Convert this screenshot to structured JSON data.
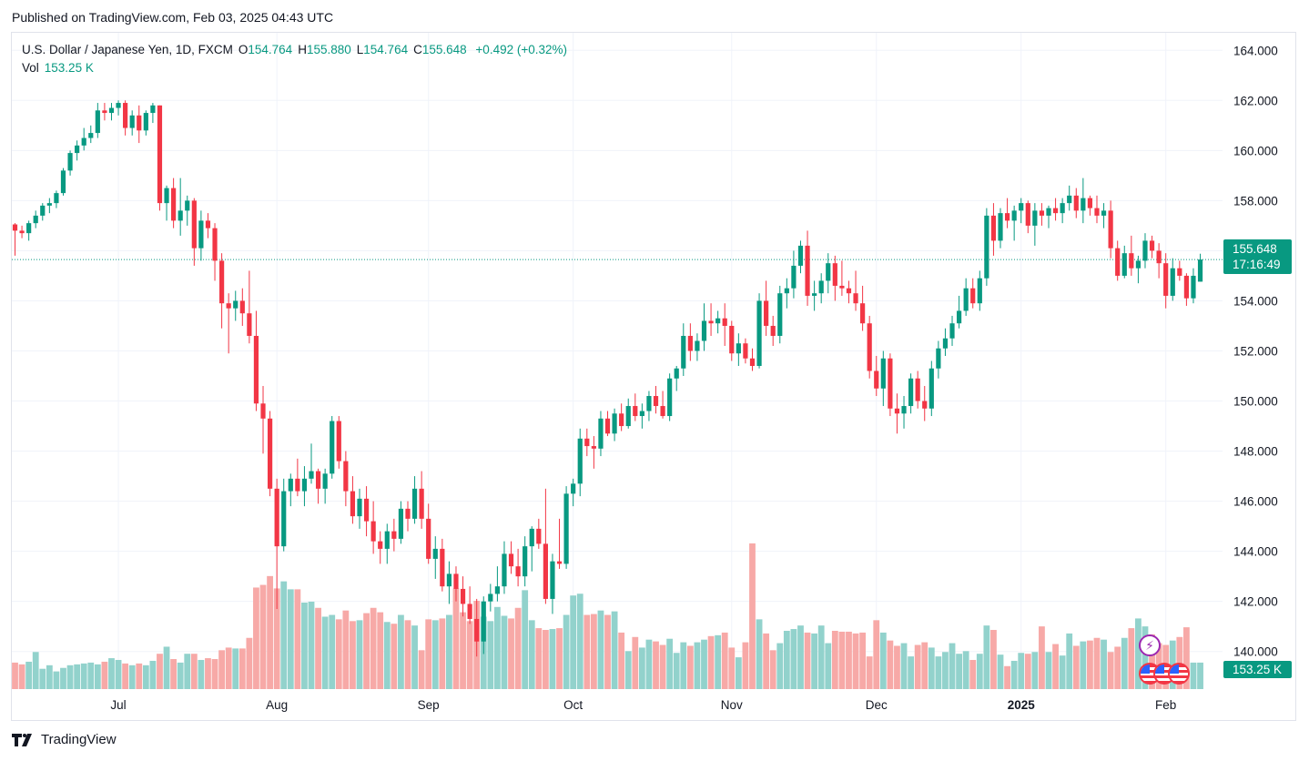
{
  "published": "Published on TradingView.com, Feb 03, 2025 04:43 UTC",
  "legend": {
    "symbol": "U.S. Dollar / Japanese Yen, 1D, FXCM",
    "o_label": "O",
    "o_value": "154.764",
    "h_label": "H",
    "h_value": "155.880",
    "l_label": "L",
    "l_value": "154.764",
    "c_label": "C",
    "c_value": "155.648",
    "change": "+0.492 (+0.32%)",
    "vol_label": "Vol",
    "vol_value": "153.25 K"
  },
  "price_badge": {
    "price": "155.648",
    "countdown": "17:16:49"
  },
  "volume_badge": "153.25 K",
  "footer": {
    "brand": "TradingView"
  },
  "colors": {
    "up": "#089981",
    "down": "#f23645",
    "up_volume": "#92d2cc",
    "down_volume": "#f7a9a7",
    "grid": "#f0f3fa"
  },
  "chart_data": {
    "type": "candlestick",
    "title": "U.S. Dollar / Japanese Yen, 1D, FXCM",
    "ylim": [
      138.5,
      164.7
    ],
    "y_ticks": [
      "140.000",
      "142.000",
      "144.000",
      "146.000",
      "148.000",
      "150.000",
      "152.000",
      "154.000",
      "156.000",
      "158.000",
      "160.000",
      "162.000",
      "164.000"
    ],
    "x_ticks": [
      {
        "label": "Jul",
        "index": 15,
        "bold": false
      },
      {
        "label": "Aug",
        "index": 38,
        "bold": false
      },
      {
        "label": "Sep",
        "index": 60,
        "bold": false
      },
      {
        "label": "Oct",
        "index": 81,
        "bold": false
      },
      {
        "label": "Nov",
        "index": 104,
        "bold": false
      },
      {
        "label": "Dec",
        "index": 125,
        "bold": false
      },
      {
        "label": "2025",
        "index": 146,
        "bold": true
      },
      {
        "label": "Feb",
        "index": 167,
        "bold": false
      }
    ],
    "last_price": 155.648,
    "candles": [
      [
        157.05,
        157.1,
        155.8,
        156.8
      ],
      [
        156.8,
        157.0,
        156.5,
        156.7
      ],
      [
        156.7,
        157.2,
        156.4,
        157.1
      ],
      [
        157.1,
        157.6,
        156.9,
        157.4
      ],
      [
        157.4,
        157.9,
        157.2,
        157.8
      ],
      [
        157.8,
        158.1,
        157.5,
        157.9
      ],
      [
        157.9,
        158.4,
        157.7,
        158.3
      ],
      [
        158.3,
        159.3,
        158.2,
        159.2
      ],
      [
        159.2,
        160.0,
        159.0,
        159.9
      ],
      [
        159.9,
        160.4,
        159.6,
        160.2
      ],
      [
        160.2,
        160.9,
        160.0,
        160.5
      ],
      [
        160.5,
        161.0,
        160.3,
        160.7
      ],
      [
        160.7,
        161.9,
        160.5,
        161.6
      ],
      [
        161.6,
        161.9,
        161.2,
        161.5
      ],
      [
        161.5,
        161.9,
        161.2,
        161.7
      ],
      [
        161.7,
        162.0,
        161.4,
        161.9
      ],
      [
        161.9,
        162.0,
        160.6,
        160.9
      ],
      [
        160.9,
        161.6,
        160.6,
        161.4
      ],
      [
        161.4,
        161.8,
        160.3,
        160.8
      ],
      [
        160.8,
        161.6,
        160.6,
        161.5
      ],
      [
        161.5,
        161.9,
        161.1,
        161.8
      ],
      [
        161.8,
        161.8,
        157.6,
        157.9
      ],
      [
        157.9,
        158.6,
        157.2,
        158.5
      ],
      [
        158.5,
        158.9,
        156.9,
        157.2
      ],
      [
        157.2,
        158.9,
        156.6,
        157.6
      ],
      [
        157.6,
        158.2,
        157.0,
        158.0
      ],
      [
        158.0,
        158.1,
        155.4,
        156.1
      ],
      [
        156.1,
        157.6,
        155.6,
        157.2
      ],
      [
        157.2,
        157.5,
        156.5,
        156.9
      ],
      [
        156.9,
        157.1,
        154.8,
        155.6
      ],
      [
        155.6,
        155.9,
        152.9,
        153.9
      ],
      [
        153.9,
        154.3,
        151.9,
        153.7
      ],
      [
        153.7,
        154.4,
        153.2,
        154.0
      ],
      [
        154.0,
        154.5,
        153.0,
        153.5
      ],
      [
        153.5,
        155.2,
        152.3,
        152.6
      ],
      [
        152.6,
        153.6,
        149.6,
        149.9
      ],
      [
        149.9,
        150.6,
        147.9,
        149.3
      ],
      [
        149.3,
        149.6,
        146.2,
        146.5
      ],
      [
        146.5,
        146.9,
        141.7,
        144.2
      ],
      [
        144.2,
        146.9,
        144.0,
        146.4
      ],
      [
        146.4,
        147.1,
        145.8,
        146.9
      ],
      [
        146.9,
        147.7,
        146.2,
        146.4
      ],
      [
        146.4,
        147.4,
        145.8,
        146.9
      ],
      [
        146.9,
        148.3,
        146.7,
        147.2
      ],
      [
        147.2,
        147.3,
        145.9,
        146.5
      ],
      [
        146.5,
        147.3,
        145.9,
        147.1
      ],
      [
        147.1,
        149.4,
        146.9,
        149.2
      ],
      [
        149.2,
        149.4,
        147.3,
        147.6
      ],
      [
        147.6,
        148.0,
        145.8,
        146.4
      ],
      [
        146.4,
        147.0,
        145.1,
        145.4
      ],
      [
        145.4,
        146.5,
        144.9,
        146.1
      ],
      [
        146.1,
        146.6,
        144.6,
        145.2
      ],
      [
        145.2,
        146.0,
        143.9,
        144.4
      ],
      [
        144.4,
        144.8,
        143.5,
        144.1
      ],
      [
        144.1,
        145.1,
        143.5,
        144.8
      ],
      [
        144.8,
        145.3,
        144.0,
        144.5
      ],
      [
        144.5,
        146.0,
        144.3,
        145.7
      ],
      [
        145.7,
        146.0,
        144.8,
        145.3
      ],
      [
        145.3,
        147.0,
        145.1,
        146.5
      ],
      [
        146.5,
        147.2,
        144.9,
        145.3
      ],
      [
        145.3,
        145.9,
        143.5,
        143.7
      ],
      [
        143.7,
        144.6,
        142.9,
        144.1
      ],
      [
        144.1,
        144.5,
        142.4,
        142.6
      ],
      [
        142.6,
        143.6,
        141.9,
        143.1
      ],
      [
        143.1,
        143.4,
        142.0,
        142.5
      ],
      [
        142.5,
        143.0,
        141.4,
        141.9
      ],
      [
        141.9,
        142.6,
        141.1,
        141.3
      ],
      [
        141.3,
        142.1,
        139.8,
        140.4
      ],
      [
        140.4,
        142.2,
        139.9,
        142.0
      ],
      [
        142.0,
        142.7,
        141.6,
        142.3
      ],
      [
        142.3,
        143.4,
        142.0,
        142.6
      ],
      [
        142.6,
        144.4,
        142.3,
        143.9
      ],
      [
        143.9,
        144.4,
        143.1,
        143.4
      ],
      [
        143.4,
        144.1,
        142.6,
        143.0
      ],
      [
        143.0,
        144.6,
        142.6,
        144.2
      ],
      [
        144.2,
        145.0,
        143.2,
        144.9
      ],
      [
        144.9,
        145.3,
        144.1,
        144.3
      ],
      [
        144.3,
        146.5,
        141.9,
        142.1
      ],
      [
        142.1,
        143.9,
        141.5,
        143.6
      ],
      [
        143.6,
        145.3,
        143.3,
        143.5
      ],
      [
        143.5,
        146.6,
        143.3,
        146.3
      ],
      [
        146.3,
        146.9,
        145.8,
        146.7
      ],
      [
        146.7,
        148.9,
        146.2,
        148.5
      ],
      [
        148.5,
        148.9,
        147.8,
        148.2
      ],
      [
        148.2,
        148.6,
        147.3,
        148.1
      ],
      [
        148.1,
        149.6,
        147.8,
        149.3
      ],
      [
        149.3,
        149.6,
        148.6,
        148.7
      ],
      [
        148.7,
        149.7,
        148.4,
        149.5
      ],
      [
        149.5,
        149.9,
        148.8,
        149.0
      ],
      [
        149.0,
        150.1,
        148.9,
        149.8
      ],
      [
        149.8,
        150.3,
        149.2,
        149.4
      ],
      [
        149.4,
        149.9,
        148.9,
        149.6
      ],
      [
        149.6,
        150.4,
        149.2,
        150.2
      ],
      [
        150.2,
        150.6,
        149.5,
        149.8
      ],
      [
        149.8,
        150.4,
        149.3,
        149.4
      ],
      [
        149.4,
        151.1,
        149.2,
        150.9
      ],
      [
        150.9,
        151.4,
        150.4,
        151.3
      ],
      [
        151.3,
        153.1,
        151.0,
        152.6
      ],
      [
        152.6,
        153.1,
        151.6,
        152.0
      ],
      [
        152.0,
        152.7,
        151.6,
        152.4
      ],
      [
        152.4,
        153.9,
        152.0,
        153.2
      ],
      [
        153.2,
        153.9,
        152.6,
        153.1
      ],
      [
        153.1,
        153.6,
        152.7,
        153.3
      ],
      [
        153.3,
        153.9,
        152.2,
        153.0
      ],
      [
        153.0,
        153.2,
        151.6,
        151.9
      ],
      [
        151.9,
        152.7,
        151.4,
        152.3
      ],
      [
        152.3,
        152.5,
        151.5,
        151.7
      ],
      [
        151.7,
        152.1,
        151.2,
        151.4
      ],
      [
        151.4,
        154.3,
        151.3,
        154.0
      ],
      [
        154.0,
        154.8,
        152.6,
        153.0
      ],
      [
        153.0,
        153.4,
        152.2,
        152.6
      ],
      [
        152.6,
        154.6,
        152.3,
        154.3
      ],
      [
        154.3,
        154.9,
        153.7,
        154.5
      ],
      [
        154.5,
        156.0,
        154.1,
        155.4
      ],
      [
        155.4,
        156.4,
        155.1,
        156.2
      ],
      [
        156.2,
        156.8,
        153.8,
        154.2
      ],
      [
        154.2,
        154.8,
        153.6,
        154.3
      ],
      [
        154.3,
        155.1,
        153.9,
        154.8
      ],
      [
        154.8,
        155.9,
        154.3,
        155.5
      ],
      [
        155.5,
        155.8,
        154.0,
        154.6
      ],
      [
        154.6,
        155.6,
        154.2,
        154.5
      ],
      [
        154.5,
        154.8,
        153.9,
        154.3
      ],
      [
        154.3,
        155.2,
        153.6,
        153.9
      ],
      [
        153.9,
        154.6,
        152.8,
        153.1
      ],
      [
        153.1,
        153.4,
        150.9,
        151.2
      ],
      [
        151.2,
        151.8,
        150.2,
        150.5
      ],
      [
        150.5,
        152.0,
        149.8,
        151.7
      ],
      [
        151.7,
        151.9,
        149.4,
        149.7
      ],
      [
        149.7,
        150.3,
        148.7,
        149.5
      ],
      [
        149.5,
        150.2,
        148.9,
        149.8
      ],
      [
        149.8,
        151.1,
        149.5,
        150.9
      ],
      [
        150.9,
        151.2,
        149.7,
        150.0
      ],
      [
        150.0,
        150.6,
        149.2,
        149.7
      ],
      [
        149.7,
        151.6,
        149.4,
        151.3
      ],
      [
        151.3,
        152.4,
        150.9,
        152.1
      ],
      [
        152.1,
        152.9,
        151.8,
        152.5
      ],
      [
        152.5,
        153.4,
        152.2,
        153.1
      ],
      [
        153.1,
        154.2,
        152.9,
        153.6
      ],
      [
        153.6,
        154.9,
        153.4,
        154.5
      ],
      [
        154.5,
        154.9,
        153.7,
        153.9
      ],
      [
        153.9,
        155.2,
        153.6,
        154.9
      ],
      [
        154.9,
        157.7,
        154.6,
        157.4
      ],
      [
        157.4,
        157.9,
        155.8,
        156.4
      ],
      [
        156.4,
        157.7,
        156.1,
        157.5
      ],
      [
        157.5,
        158.1,
        156.9,
        157.2
      ],
      [
        157.2,
        157.8,
        156.4,
        157.6
      ],
      [
        157.6,
        158.1,
        157.1,
        157.9
      ],
      [
        157.9,
        158.0,
        156.7,
        157.0
      ],
      [
        157.0,
        157.9,
        156.2,
        157.6
      ],
      [
        157.6,
        157.9,
        157.0,
        157.4
      ],
      [
        157.4,
        157.8,
        156.9,
        157.7
      ],
      [
        157.7,
        158.1,
        157.2,
        157.5
      ],
      [
        157.5,
        158.1,
        157.1,
        157.9
      ],
      [
        157.9,
        158.6,
        157.6,
        158.2
      ],
      [
        158.2,
        158.5,
        157.3,
        157.6
      ],
      [
        157.6,
        158.9,
        157.1,
        158.1
      ],
      [
        158.1,
        158.2,
        157.4,
        157.7
      ],
      [
        157.7,
        158.2,
        157.1,
        157.4
      ],
      [
        157.4,
        157.9,
        156.9,
        157.6
      ],
      [
        157.6,
        158.0,
        155.7,
        156.1
      ],
      [
        156.1,
        156.4,
        154.8,
        155.0
      ],
      [
        155.0,
        156.2,
        154.9,
        155.9
      ],
      [
        155.9,
        156.6,
        155.0,
        155.3
      ],
      [
        155.3,
        155.8,
        154.7,
        155.6
      ],
      [
        155.6,
        156.7,
        155.3,
        156.4
      ],
      [
        156.4,
        156.6,
        155.7,
        156.0
      ],
      [
        156.0,
        156.3,
        154.9,
        155.5
      ],
      [
        155.5,
        155.9,
        153.7,
        154.2
      ],
      [
        154.2,
        155.7,
        154.0,
        155.3
      ],
      [
        155.3,
        155.6,
        154.8,
        155.0
      ],
      [
        155.0,
        155.1,
        153.8,
        154.1
      ],
      [
        154.1,
        155.3,
        153.9,
        155.0
      ],
      [
        154.764,
        155.88,
        154.764,
        155.648
      ]
    ],
    "volume_levels": [
      0.3,
      0.28,
      0.31,
      0.42,
      0.23,
      0.27,
      0.2,
      0.24,
      0.27,
      0.28,
      0.29,
      0.3,
      0.28,
      0.31,
      0.35,
      0.33,
      0.29,
      0.27,
      0.29,
      0.27,
      0.32,
      0.4,
      0.48,
      0.34,
      0.3,
      0.4,
      0.4,
      0.33,
      0.35,
      0.34,
      0.44,
      0.47,
      0.46,
      0.46,
      0.58,
      1.15,
      1.18,
      1.28,
      1.14,
      1.22,
      1.13,
      1.13,
      0.98,
      0.99,
      0.92,
      0.82,
      0.84,
      0.79,
      0.89,
      0.77,
      0.78,
      0.86,
      0.92,
      0.87,
      0.76,
      0.74,
      0.84,
      0.78,
      0.72,
      0.44,
      0.79,
      0.78,
      0.8,
      0.84,
      1.14,
      0.87,
      0.77,
      1.0,
      0.82,
      0.77,
      0.93,
      0.83,
      0.8,
      0.92,
      1.12,
      0.78,
      0.69,
      0.67,
      0.68,
      0.69,
      0.84,
      1.06,
      1.08,
      0.84,
      0.85,
      0.89,
      0.84,
      0.88,
      0.64,
      0.43,
      0.59,
      0.47,
      0.56,
      0.54,
      0.5,
      0.57,
      0.41,
      0.53,
      0.49,
      0.53,
      0.56,
      0.6,
      0.61,
      0.64,
      0.47,
      0.36,
      0.53,
      1.65,
      0.79,
      0.63,
      0.44,
      0.52,
      0.66,
      0.68,
      0.72,
      0.64,
      0.63,
      0.72,
      0.52,
      0.66,
      0.65,
      0.65,
      0.63,
      0.64,
      0.37,
      0.78,
      0.64,
      0.55,
      0.49,
      0.52,
      0.37,
      0.5,
      0.53,
      0.47,
      0.37,
      0.42,
      0.52,
      0.4,
      0.43,
      0.33,
      0.4,
      0.72,
      0.67,
      0.39,
      0.26,
      0.32,
      0.41,
      0.4,
      0.42,
      0.71,
      0.42,
      0.51,
      0.38,
      0.63,
      0.49,
      0.54,
      0.55,
      0.58,
      0.56,
      0.42,
      0.48,
      0.58,
      0.69,
      0.8,
      0.71,
      0.62,
      0.52,
      0.5,
      0.55,
      0.59,
      0.7
    ]
  }
}
